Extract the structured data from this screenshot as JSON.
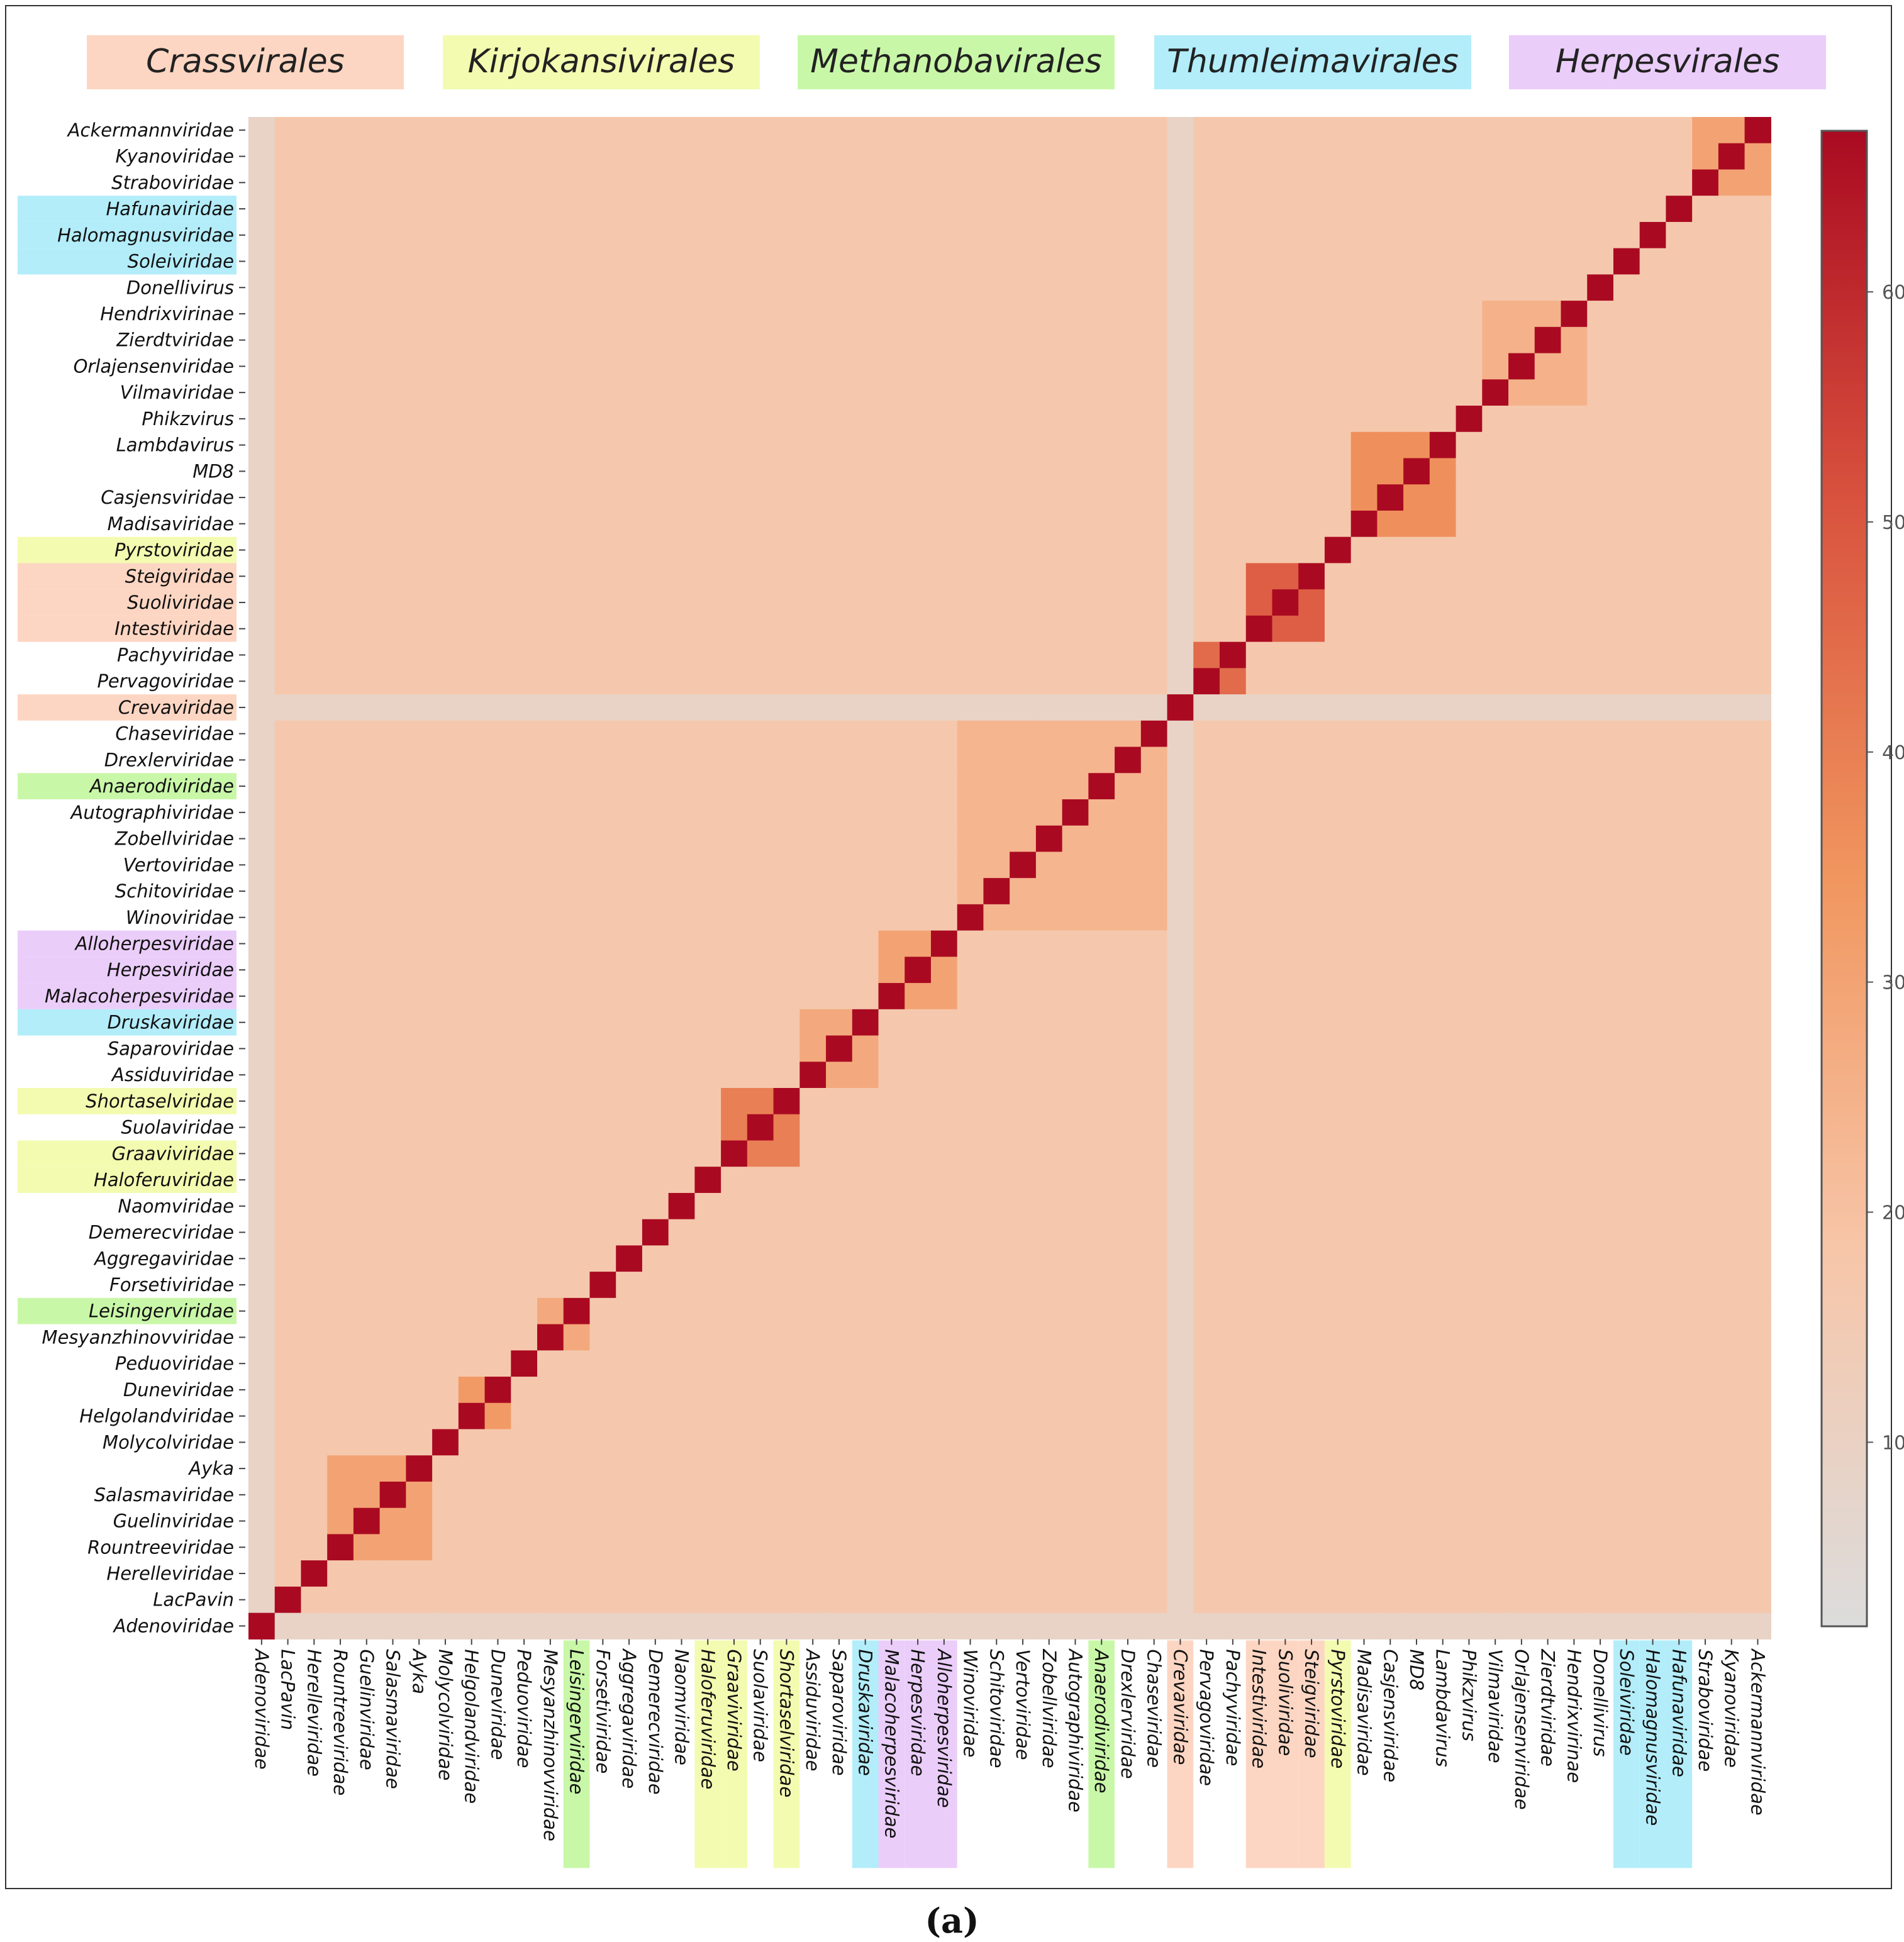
{
  "chart_data": {
    "type": "heatmap",
    "title": "",
    "order_labels": [
      {
        "name": "Crassvirales",
        "color": "#fdd6c3"
      },
      {
        "name": "Kirjokansivirales",
        "color": "#f3fbb0"
      },
      {
        "name": "Methanobavirales",
        "color": "#c9f7a8"
      },
      {
        "name": "Thumleimavirales",
        "color": "#b3edf9"
      },
      {
        "name": "Herpesvirales",
        "color": "#ebcdfa"
      }
    ],
    "x_labels": [
      "Adenoviridae",
      "LacPavin",
      "Herelleviridae",
      "Rountreeviridae",
      "Guelinviridae",
      "Salasmaviridae",
      "Ayka",
      "Molycolviridae",
      "Helgolandviridae",
      "Duneviridae",
      "Peduoviridae",
      "Mesyanzhinovviridae",
      "Leisingerviridae",
      "Forsetiviridae",
      "Aggregaviridae",
      "Demerecviridae",
      "Naomviridae",
      "Haloferuviridae",
      "Graaviviridae",
      "Suolaviridae",
      "Shortaselviridae",
      "Assiduviridae",
      "Saparoviridae",
      "Druskaviridae",
      "Malacoherpesviridae",
      "Herpesviridae",
      "Alloherpesviridae",
      "Winoviridae",
      "Schitoviridae",
      "Vertoviridae",
      "Zobellviridae",
      "Autographiviridae",
      "Anaerodiviridae",
      "Drexlerviridae",
      "Chaseviridae",
      "Crevaviridae",
      "Pervagoviridae",
      "Pachyviridae",
      "Intestiviridae",
      "Suoliviridae",
      "Steigviridae",
      "Pyrstoviridae",
      "Madisaviridae",
      "Casjensviridae",
      "MD8",
      "Lambdavirus",
      "Phikzvirus",
      "Vilmaviridae",
      "Orlajensenviridae",
      "Zierdtviridae",
      "Hendrixvirinae",
      "Donellivirus",
      "Soleiviridae",
      "Halomagnusviridae",
      "Hafunaviridae",
      "Straboviridae",
      "Kyanoviridae",
      "Ackermannviridae"
    ],
    "y_labels_top_to_bottom": [
      "Ackermannviridae",
      "Kyanoviridae",
      "Straboviridae",
      "Hafunaviridae",
      "Halomagnusviridae",
      "Soleiviridae",
      "Donellivirus",
      "Hendrixvirinae",
      "Zierdtviridae",
      "Orlajensenviridae",
      "Vilmaviridae",
      "Phikzvirus",
      "Lambdavirus",
      "MD8",
      "Casjensviridae",
      "Madisaviridae",
      "Pyrstoviridae",
      "Steigviridae",
      "Suoliviridae",
      "Intestiviridae",
      "Pachyviridae",
      "Pervagoviridae",
      "Crevaviridae",
      "Chaseviridae",
      "Drexlerviridae",
      "Anaerodiviridae",
      "Autographiviridae",
      "Zobellviridae",
      "Vertoviridae",
      "Schitoviridae",
      "Winoviridae",
      "Alloherpesviridae",
      "Herpesviridae",
      "Malacoherpesviridae",
      "Druskaviridae",
      "Saparoviridae",
      "Assiduviridae",
      "Shortaselviridae",
      "Suolaviridae",
      "Graaviviridae",
      "Haloferuviridae",
      "Naomviridae",
      "Demerecviridae",
      "Aggregaviridae",
      "Forsetiviridae",
      "Leisingerviridae",
      "Mesyanzhinovviridae",
      "Peduoviridae",
      "Duneviridae",
      "Helgolandviridae",
      "Molycolviridae",
      "Ayka",
      "Salasmaviridae",
      "Guelinviridae",
      "Rountreeviridae",
      "Herelleviridae",
      "LacPavin",
      "Adenoviridae"
    ],
    "highlighted_labels": {
      "Crassvirales": [
        "Steigviridae",
        "Suoliviridae",
        "Intestiviridae",
        "Crevaviridae"
      ],
      "Kirjokansivirales": [
        "Pyrstoviridae",
        "Shortaselviridae",
        "Graaviviridae",
        "Haloferuviridae"
      ],
      "Methanobavirales": [
        "Anaerodiviridae",
        "Leisingerviridae"
      ],
      "Thumleimavirales": [
        "Hafunaviridae",
        "Halomagnusviridae",
        "Soleiviridae",
        "Druskaviridae"
      ],
      "Herpesvirales": [
        "Alloherpesviridae",
        "Herpesviridae",
        "Malacoherpesviridae"
      ]
    },
    "diagonal_value": 67,
    "background_value": 17,
    "low_value_labels": [
      "Adenoviridae",
      "Crevaviridae"
    ],
    "low_value": 9,
    "blocks": [
      {
        "members": [
          "Ackermannviridae",
          "Kyanoviridae",
          "Straboviridae"
        ],
        "value": 30
      },
      {
        "members": [
          "Zierdtviridae",
          "Orlajensenviridae",
          "Vilmaviridae",
          "Hendrixvirinae"
        ],
        "value": 25
      },
      {
        "members": [
          "Lambdavirus",
          "MD8",
          "Casjensviridae",
          "Madisaviridae"
        ],
        "value": 36
      },
      {
        "members": [
          "Steigviridae",
          "Suoliviridae",
          "Intestiviridae"
        ],
        "value": 48
      },
      {
        "members": [
          "Pachyviridae",
          "Pervagoviridae"
        ],
        "value": 45
      },
      {
        "members": [
          "Chaseviridae",
          "Drexlerviridae",
          "Anaerodiviridae",
          "Autographiviridae",
          "Zobellviridae",
          "Vertoviridae",
          "Schitoviridae",
          "Winoviridae"
        ],
        "value": 24
      },
      {
        "members": [
          "Alloherpesviridae",
          "Herpesviridae",
          "Malacoherpesviridae"
        ],
        "value": 30
      },
      {
        "members": [
          "Druskaviridae",
          "Saparoviridae",
          "Assiduviridae"
        ],
        "value": 28
      },
      {
        "members": [
          "Shortaselviridae",
          "Suolaviridae",
          "Graaviviridae"
        ],
        "value": 40
      },
      {
        "members": [
          "Ayka",
          "Salasmaviridae",
          "Guelinviridae",
          "Rountreeviridae"
        ],
        "value": 30
      },
      {
        "members": [
          "Duneviridae",
          "Helgolandviridae"
        ],
        "value": 33
      },
      {
        "members": [
          "Leisingerviridae",
          "Mesyanzhinovviridae"
        ],
        "value": 28
      }
    ],
    "colorbar": {
      "min": 2,
      "max": 67,
      "ticks": [
        10,
        20,
        30,
        40,
        50,
        60
      ]
    },
    "colorscale": [
      "#dcdcdc",
      "#f7c6a9",
      "#f1965f",
      "#d9533e",
      "#aa0a21"
    ]
  },
  "caption": "(a)"
}
